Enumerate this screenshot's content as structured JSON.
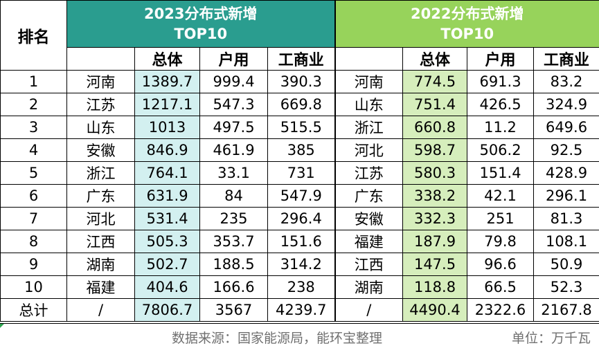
{
  "header": {
    "rank_label": "排名",
    "group_2023_line1": "2023分布式新增",
    "group_2023_line2": "TOP10",
    "group_2022_line1": "2022分布式新增",
    "group_2022_line2": "TOP10",
    "col_total": "总体",
    "col_household": "户用",
    "col_commercial": "工商业"
  },
  "rows": [
    {
      "rank": "1",
      "p23": "河南",
      "t23": "1389.7",
      "h23": "999.4",
      "c23": "390.3",
      "p22": "河南",
      "t22": "774.5",
      "h22": "691.3",
      "c22": "83.2"
    },
    {
      "rank": "2",
      "p23": "江苏",
      "t23": "1217.1",
      "h23": "547.3",
      "c23": "669.8",
      "p22": "山东",
      "t22": "751.4",
      "h22": "426.5",
      "c22": "324.9"
    },
    {
      "rank": "3",
      "p23": "山东",
      "t23": "1013",
      "h23": "497.5",
      "c23": "515.5",
      "p22": "浙江",
      "t22": "660.8",
      "h22": "11.2",
      "c22": "649.6"
    },
    {
      "rank": "4",
      "p23": "安徽",
      "t23": "846.9",
      "h23": "461.9",
      "c23": "385",
      "p22": "河北",
      "t22": "598.7",
      "h22": "506.2",
      "c22": "92.5"
    },
    {
      "rank": "5",
      "p23": "浙江",
      "t23": "764.1",
      "h23": "33.1",
      "c23": "731",
      "p22": "江苏",
      "t22": "580.3",
      "h22": "151.4",
      "c22": "428.9"
    },
    {
      "rank": "6",
      "p23": "广东",
      "t23": "631.9",
      "h23": "84",
      "c23": "547.9",
      "p22": "广东",
      "t22": "338.2",
      "h22": "42.1",
      "c22": "296.1"
    },
    {
      "rank": "7",
      "p23": "河北",
      "t23": "531.4",
      "h23": "235",
      "c23": "296.4",
      "p22": "安徽",
      "t22": "332.3",
      "h22": "251",
      "c22": "81.3"
    },
    {
      "rank": "8",
      "p23": "江西",
      "t23": "505.3",
      "h23": "353.7",
      "c23": "151.6",
      "p22": "福建",
      "t22": "187.9",
      "h22": "79.8",
      "c22": "108.1"
    },
    {
      "rank": "9",
      "p23": "湖南",
      "t23": "502.7",
      "h23": "188.5",
      "c23": "314.2",
      "p22": "江西",
      "t22": "147.5",
      "h22": "96.6",
      "c22": "50.9"
    },
    {
      "rank": "10",
      "p23": "福建",
      "t23": "404.6",
      "h23": "166.6",
      "c23": "238",
      "p22": "湖南",
      "t22": "118.8",
      "h22": "66.5",
      "c22": "52.3"
    }
  ],
  "totals": {
    "label": "总计",
    "p23": "/",
    "t23": "7806.7",
    "h23": "3567",
    "c23": "4239.7",
    "p22": "/",
    "t22": "4490.4",
    "h22": "2322.6",
    "c22": "2167.8"
  },
  "footer": {
    "source": "数据来源：国家能源局，能环宝整理",
    "unit": "单位：万千瓦"
  },
  "colors": {
    "header_2023": "#2a9d8f",
    "header_2022": "#97d35b",
    "total_2023_fill": "#d3f0f0",
    "total_2022_fill": "#d6eebc"
  }
}
